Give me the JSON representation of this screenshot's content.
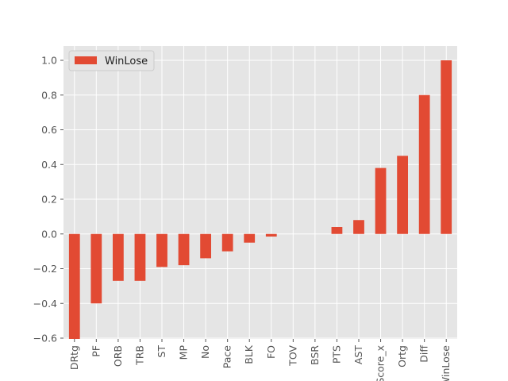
{
  "chart_data": {
    "type": "bar",
    "categories": [
      "DRtg",
      "PF",
      "ORB",
      "TRB",
      "ST",
      "MP",
      "No",
      "Pace",
      "BLK",
      "FO",
      "TOV",
      "BSR",
      "PTS",
      "AST",
      "Score_x",
      "Ortg",
      "Diff",
      "WinLose"
    ],
    "series": [
      {
        "name": "WinLose",
        "color": "#E24A33",
        "values": [
          -0.62,
          -0.4,
          -0.27,
          -0.27,
          -0.19,
          -0.18,
          -0.14,
          -0.1,
          -0.05,
          -0.015,
          0.0,
          0.0,
          0.04,
          0.08,
          0.38,
          0.45,
          0.8,
          1.0
        ]
      }
    ],
    "ylim": [
      -0.6,
      1.08
    ],
    "y_ticks": [
      -0.6,
      -0.4,
      -0.2,
      0.0,
      0.2,
      0.4,
      0.6,
      0.8,
      1.0
    ],
    "y_tick_labels": [
      "−0.6",
      "−0.4",
      "−0.2",
      "0.0",
      "0.2",
      "0.4",
      "0.6",
      "0.8",
      "1.0"
    ],
    "grid": true,
    "legend": "upper-left",
    "style": "ggplot",
    "colors": {
      "background": "#E5E5E5",
      "grid": "#FFFFFF",
      "bar": "#E24A33"
    }
  }
}
